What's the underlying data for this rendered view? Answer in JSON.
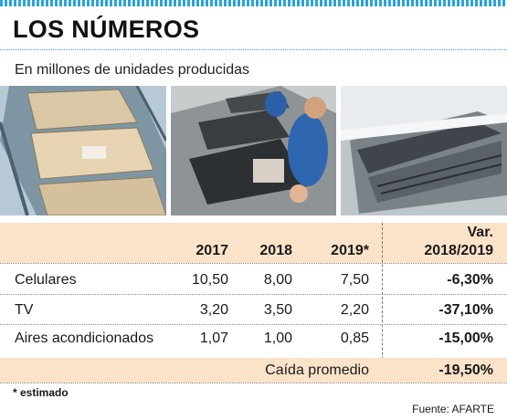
{
  "title": "LOS NÚMEROS",
  "subtitle": "En millones de unidades producidas",
  "photos": [
    {
      "name": "cellphone-assembly-photo"
    },
    {
      "name": "tv-assembly-photo"
    },
    {
      "name": "air-conditioner-photo"
    }
  ],
  "colors": {
    "accent": "#29a3dc",
    "band": "#fbe3c9"
  },
  "chart_data": {
    "type": "table",
    "columns": [
      "",
      "2017",
      "2018",
      "2019*",
      "Var. 2018/2019"
    ],
    "header": {
      "y2017": "2017",
      "y2018": "2018",
      "y2019": "2019*",
      "var1": "Var.",
      "var2": "2018/2019"
    },
    "rows": [
      {
        "label": "Celulares",
        "v2017": "10,50",
        "v2018": "8,00",
        "v2019": "7,50",
        "var": "-6,30%"
      },
      {
        "label": "TV",
        "v2017": "3,20",
        "v2018": "3,50",
        "v2019": "2,20",
        "var": "-37,10%"
      },
      {
        "label": "Aires acondicionados",
        "v2017": "1,07",
        "v2018": "1,00",
        "v2019": "0,85",
        "var": "-15,00%"
      }
    ],
    "summary": {
      "label": "Caída promedio",
      "var": "-19,50%"
    }
  },
  "note": "* estimado",
  "source": "Fuente: AFARTE"
}
